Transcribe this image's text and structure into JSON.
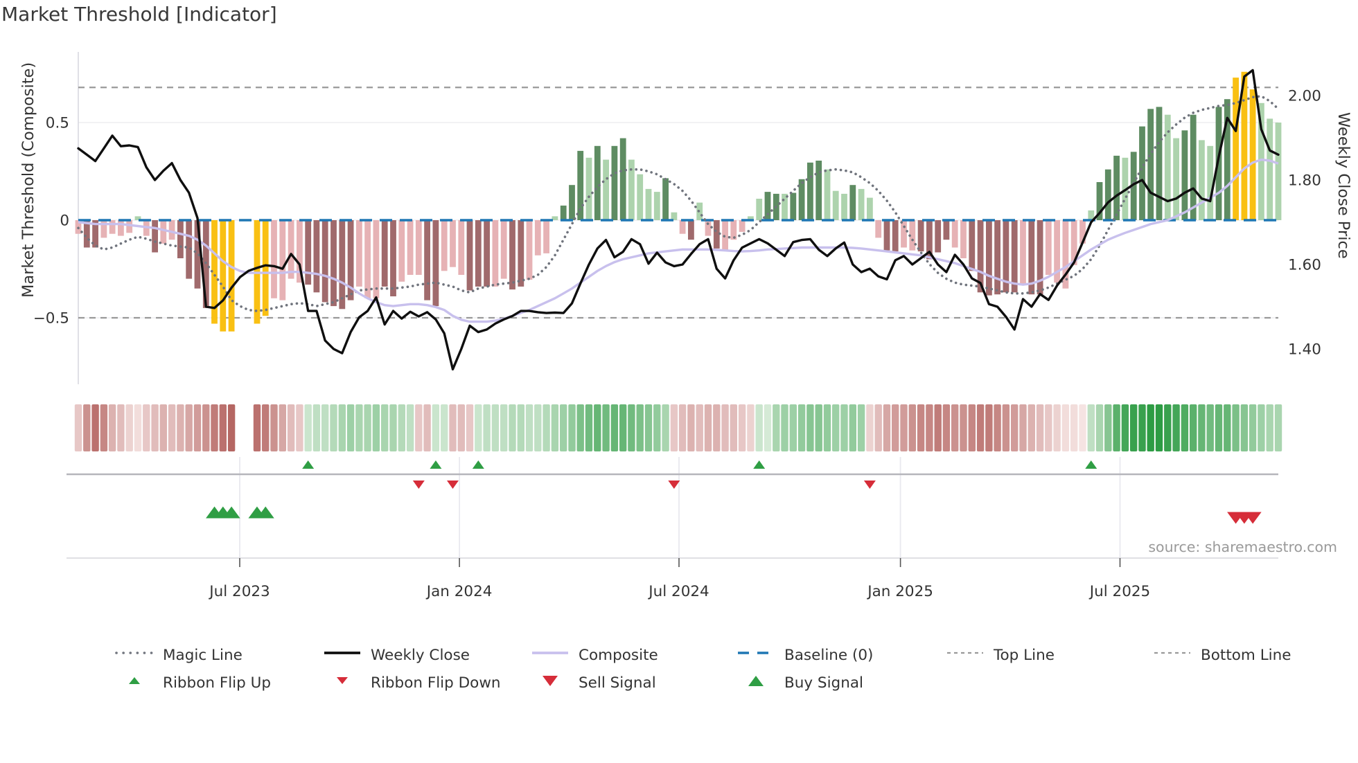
{
  "title": "Market Threshold [Indicator]",
  "source": "source: sharemaestro.com",
  "colors": {
    "bars": {
      "dr": "#a06a6c",
      "lr": "#e6b2b5",
      "dg": "#5e8c62",
      "lg": "#add3ad",
      "y": "#f9c013"
    },
    "close_line": "#0f0f0f",
    "composite_line": "#c8c0ed",
    "magic_line": "#70747d",
    "baseline": "#1f77b4",
    "top_bottom_line": "#999999",
    "signal_green": "#2f9e44",
    "signal_red": "#d62d39",
    "ribbon_neg_light": "#f5e3e2",
    "ribbon_neg_dark": "#b05c58",
    "ribbon_pos_light": "#e7f2e6",
    "ribbon_pos_dark": "#2e9c44",
    "grid": "#ededf1",
    "spine": "#d8d8e0",
    "panel_line": "#b5b5bb",
    "panel_line_faint": "#dcdce0",
    "tick_text": "#333333"
  },
  "axes": {
    "left": {
      "label": "Market Threshold (Composite)",
      "tick_values": [
        0.5,
        0,
        -0.5
      ],
      "tick_labels": [
        "0.5",
        "0",
        "−0.5"
      ],
      "range": [
        -0.84,
        0.86
      ]
    },
    "right": {
      "label": "Weekly Close Price",
      "tick_values": [
        2.0,
        1.8,
        1.6,
        1.4
      ],
      "tick_labels": [
        "2.00",
        "1.80",
        "1.60",
        "1.40"
      ],
      "range": [
        1.316,
        2.103
      ]
    },
    "x": {
      "tick_weeks": [
        18.97,
        44.78,
        70.58,
        96.6,
        122.4
      ],
      "tick_labels": [
        "Jul 2023",
        "Jan 2024",
        "Jul 2024",
        "Jan 2025",
        "Jul 2025"
      ]
    }
  },
  "legend": {
    "row1": [
      {
        "label": "Magic Line",
        "swatch": "dotted-gray"
      },
      {
        "label": "Weekly Close",
        "swatch": "solid-black"
      },
      {
        "label": "Composite",
        "swatch": "solid-lavender"
      },
      {
        "label": "Baseline (0)",
        "swatch": "dashed-blue"
      },
      {
        "label": "Top Line",
        "swatch": "dash-gray"
      },
      {
        "label": "Bottom Line",
        "swatch": "dash-gray"
      }
    ],
    "row2": [
      {
        "label": "Ribbon Flip Up",
        "marker": "up-green-small"
      },
      {
        "label": "Ribbon Flip Down",
        "marker": "down-red-small"
      },
      {
        "label": "Sell Signal",
        "marker": "down-red-large"
      },
      {
        "label": "Buy Signal",
        "marker": "up-green-large"
      }
    ]
  },
  "chart_data": {
    "type": "combo",
    "n_weeks": 142,
    "frequency": "weekly",
    "reference_lines": {
      "baseline": 0,
      "top_line": 0.68,
      "bottom_line": -0.5
    },
    "bars": {
      "axis": "left",
      "values": [
        -0.07,
        -0.14,
        -0.14,
        -0.09,
        -0.07,
        -0.08,
        -0.065,
        0.02,
        -0.08,
        -0.165,
        -0.12,
        -0.1,
        -0.195,
        -0.3,
        -0.35,
        -0.45,
        -0.53,
        -0.57,
        -0.57,
        null,
        null,
        -0.53,
        -0.49,
        -0.4,
        -0.41,
        -0.3,
        -0.32,
        -0.33,
        -0.37,
        -0.42,
        -0.44,
        -0.455,
        -0.41,
        -0.34,
        -0.4,
        -0.4,
        -0.34,
        -0.39,
        -0.315,
        -0.28,
        -0.28,
        -0.41,
        -0.44,
        -0.26,
        -0.24,
        -0.28,
        -0.36,
        -0.34,
        -0.34,
        -0.34,
        -0.3,
        -0.355,
        -0.34,
        -0.305,
        -0.18,
        -0.17,
        0.02,
        0.075,
        0.18,
        0.355,
        0.32,
        0.38,
        0.31,
        0.38,
        0.42,
        0.31,
        0.235,
        0.16,
        0.145,
        0.215,
        0.04,
        -0.07,
        -0.1,
        0.09,
        -0.08,
        -0.145,
        -0.155,
        -0.1,
        -0.06,
        0.02,
        0.11,
        0.145,
        0.135,
        0.135,
        0.14,
        0.21,
        0.295,
        0.305,
        0.26,
        0.15,
        0.135,
        0.18,
        0.16,
        0.115,
        -0.09,
        -0.155,
        -0.16,
        -0.14,
        -0.155,
        -0.16,
        -0.2,
        -0.165,
        -0.1,
        -0.14,
        -0.195,
        -0.26,
        -0.37,
        -0.385,
        -0.38,
        -0.37,
        -0.37,
        -0.33,
        -0.38,
        -0.38,
        -0.28,
        -0.32,
        -0.35,
        -0.23,
        -0.12,
        0.05,
        0.195,
        0.26,
        0.33,
        0.32,
        0.35,
        0.48,
        0.57,
        0.58,
        0.54,
        0.42,
        0.46,
        0.54,
        0.41,
        0.38,
        0.58,
        0.62,
        0.73,
        0.76,
        0.67,
        0.6,
        0.52,
        0.5
      ],
      "colors": [
        "lr",
        "dr",
        "dr",
        "lr",
        "lr",
        "lr",
        "lr",
        "lg",
        "lr",
        "dr",
        "lr",
        "lr",
        "dr",
        "dr",
        "dr",
        "dr",
        "y",
        "y",
        "y",
        null,
        null,
        "y",
        "y",
        "lr",
        "lr",
        "lr",
        "lr",
        "dr",
        "dr",
        "dr",
        "dr",
        "dr",
        "dr",
        "lr",
        "lr",
        "lr",
        "dr",
        "dr",
        "lr",
        "lr",
        "lr",
        "dr",
        "dr",
        "lr",
        "lr",
        "lr",
        "dr",
        "dr",
        "dr",
        "lr",
        "lr",
        "dr",
        "dr",
        "lr",
        "lr",
        "lr",
        "lg",
        "dg",
        "dg",
        "dg",
        "lg",
        "dg",
        "lg",
        "dg",
        "dg",
        "lg",
        "lg",
        "lg",
        "lg",
        "dg",
        "lg",
        "lr",
        "dr",
        "lg",
        "lr",
        "dr",
        "lr",
        "lr",
        "lr",
        "lg",
        "lg",
        "dg",
        "dg",
        "lg",
        "dg",
        "dg",
        "dg",
        "dg",
        "lg",
        "lg",
        "lg",
        "dg",
        "lg",
        "lg",
        "lr",
        "dr",
        "dr",
        "lr",
        "lr",
        "dr",
        "dr",
        "dr",
        "dr",
        "lr",
        "lr",
        "dr",
        "dr",
        "dr",
        "dr",
        "dr",
        "dr",
        "lr",
        "dr",
        "dr",
        "lr",
        "lr",
        "lr",
        "lr",
        "lr",
        "lg",
        "dg",
        "dg",
        "dg",
        "lg",
        "dg",
        "dg",
        "dg",
        "dg",
        "lg",
        "lg",
        "dg",
        "dg",
        "lg",
        "lg",
        "dg",
        "dg",
        "y",
        "y",
        "y",
        "lg",
        "lg",
        "lg"
      ]
    },
    "series": {
      "weekly_close": {
        "axis": "right",
        "values": [
          1.875,
          1.86,
          1.845,
          1.875,
          1.905,
          1.88,
          1.882,
          1.878,
          1.83,
          1.8,
          1.822,
          1.84,
          1.8,
          1.77,
          1.71,
          1.5,
          1.497,
          1.515,
          1.545,
          1.57,
          1.585,
          1.592,
          1.598,
          1.596,
          1.59,
          1.625,
          1.6,
          1.49,
          1.49,
          1.42,
          1.4,
          1.39,
          1.44,
          1.475,
          1.49,
          1.522,
          1.458,
          1.49,
          1.472,
          1.488,
          1.477,
          1.487,
          1.47,
          1.437,
          1.352,
          1.4,
          1.455,
          1.44,
          1.446,
          1.46,
          1.47,
          1.478,
          1.49,
          1.49,
          1.487,
          1.485,
          1.486,
          1.485,
          1.508,
          1.555,
          1.6,
          1.638,
          1.658,
          1.617,
          1.63,
          1.66,
          1.648,
          1.602,
          1.628,
          1.605,
          1.596,
          1.6,
          1.625,
          1.648,
          1.66,
          1.59,
          1.567,
          1.61,
          1.64,
          1.65,
          1.66,
          1.65,
          1.635,
          1.62,
          1.653,
          1.658,
          1.66,
          1.635,
          1.62,
          1.638,
          1.652,
          1.6,
          1.582,
          1.59,
          1.572,
          1.565,
          1.61,
          1.62,
          1.6,
          1.615,
          1.63,
          1.6,
          1.582,
          1.623,
          1.6,
          1.567,
          1.556,
          1.506,
          1.5,
          1.476,
          1.446,
          1.518,
          1.5,
          1.53,
          1.516,
          1.55,
          1.576,
          1.605,
          1.652,
          1.7,
          1.722,
          1.747,
          1.763,
          1.776,
          1.79,
          1.8,
          1.77,
          1.76,
          1.75,
          1.756,
          1.77,
          1.78,
          1.756,
          1.75,
          1.855,
          1.947,
          1.916,
          2.045,
          2.06,
          1.92,
          1.87,
          1.86
        ]
      },
      "composite": {
        "axis": "left",
        "values": [
          -0.01,
          -0.015,
          -0.02,
          -0.02,
          -0.02,
          -0.02,
          -0.025,
          -0.03,
          -0.035,
          -0.04,
          -0.05,
          -0.06,
          -0.07,
          -0.08,
          -0.1,
          -0.13,
          -0.17,
          -0.21,
          -0.24,
          -0.26,
          -0.27,
          -0.27,
          -0.27,
          -0.27,
          -0.27,
          -0.265,
          -0.265,
          -0.27,
          -0.275,
          -0.285,
          -0.3,
          -0.32,
          -0.345,
          -0.375,
          -0.4,
          -0.42,
          -0.435,
          -0.44,
          -0.435,
          -0.43,
          -0.43,
          -0.435,
          -0.445,
          -0.46,
          -0.49,
          -0.51,
          -0.52,
          -0.52,
          -0.52,
          -0.515,
          -0.505,
          -0.49,
          -0.475,
          -0.46,
          -0.44,
          -0.42,
          -0.4,
          -0.375,
          -0.35,
          -0.32,
          -0.29,
          -0.26,
          -0.235,
          -0.215,
          -0.2,
          -0.19,
          -0.18,
          -0.17,
          -0.165,
          -0.16,
          -0.155,
          -0.15,
          -0.15,
          -0.15,
          -0.15,
          -0.152,
          -0.155,
          -0.158,
          -0.16,
          -0.158,
          -0.155,
          -0.15,
          -0.148,
          -0.145,
          -0.143,
          -0.14,
          -0.14,
          -0.14,
          -0.14,
          -0.14,
          -0.14,
          -0.142,
          -0.145,
          -0.15,
          -0.155,
          -0.16,
          -0.165,
          -0.17,
          -0.175,
          -0.18,
          -0.19,
          -0.2,
          -0.21,
          -0.22,
          -0.235,
          -0.25,
          -0.265,
          -0.285,
          -0.3,
          -0.315,
          -0.325,
          -0.33,
          -0.325,
          -0.31,
          -0.29,
          -0.265,
          -0.24,
          -0.21,
          -0.18,
          -0.15,
          -0.125,
          -0.1,
          -0.082,
          -0.065,
          -0.05,
          -0.035,
          -0.02,
          -0.01,
          0.0,
          0.02,
          0.04,
          0.065,
          0.09,
          0.115,
          0.14,
          0.175,
          0.22,
          0.265,
          0.295,
          0.31,
          0.305,
          0.29
        ]
      },
      "magic": {
        "axis": "left",
        "values": [
          -0.04,
          -0.09,
          -0.13,
          -0.15,
          -0.14,
          -0.12,
          -0.1,
          -0.085,
          -0.095,
          -0.11,
          -0.12,
          -0.13,
          -0.135,
          -0.14,
          -0.17,
          -0.22,
          -0.28,
          -0.34,
          -0.41,
          -0.44,
          -0.46,
          -0.465,
          -0.46,
          -0.45,
          -0.44,
          -0.43,
          -0.425,
          -0.43,
          -0.44,
          -0.43,
          -0.42,
          -0.4,
          -0.38,
          -0.36,
          -0.355,
          -0.35,
          -0.35,
          -0.35,
          -0.345,
          -0.34,
          -0.33,
          -0.325,
          -0.32,
          -0.33,
          -0.34,
          -0.36,
          -0.37,
          -0.35,
          -0.34,
          -0.33,
          -0.325,
          -0.32,
          -0.31,
          -0.3,
          -0.28,
          -0.24,
          -0.18,
          -0.1,
          -0.02,
          0.06,
          0.12,
          0.17,
          0.21,
          0.24,
          0.255,
          0.26,
          0.26,
          0.25,
          0.235,
          0.21,
          0.185,
          0.15,
          0.1,
          0.04,
          -0.02,
          -0.06,
          -0.085,
          -0.09,
          -0.075,
          -0.05,
          -0.01,
          0.03,
          0.07,
          0.11,
          0.15,
          0.19,
          0.22,
          0.245,
          0.255,
          0.26,
          0.255,
          0.245,
          0.22,
          0.19,
          0.15,
          0.1,
          0.04,
          -0.03,
          -0.1,
          -0.165,
          -0.225,
          -0.27,
          -0.3,
          -0.32,
          -0.33,
          -0.335,
          -0.34,
          -0.35,
          -0.36,
          -0.37,
          -0.375,
          -0.375,
          -0.37,
          -0.36,
          -0.345,
          -0.325,
          -0.305,
          -0.285,
          -0.25,
          -0.2,
          -0.13,
          -0.05,
          0.03,
          0.11,
          0.19,
          0.27,
          0.34,
          0.4,
          0.45,
          0.49,
          0.525,
          0.55,
          0.565,
          0.575,
          0.585,
          0.59,
          0.6,
          0.615,
          0.63,
          0.635,
          0.61,
          0.57
        ]
      }
    },
    "ribbon": {
      "values": [
        -0.25,
        -0.5,
        -0.65,
        -0.55,
        -0.35,
        -0.3,
        -0.2,
        -0.15,
        -0.25,
        -0.3,
        -0.35,
        -0.3,
        -0.35,
        -0.4,
        -0.45,
        -0.5,
        -0.6,
        -0.65,
        -0.7,
        null,
        null,
        -0.65,
        -0.6,
        -0.5,
        -0.4,
        -0.3,
        -0.25,
        0.25,
        0.3,
        0.3,
        0.35,
        0.4,
        0.45,
        0.4,
        0.4,
        0.45,
        0.4,
        0.4,
        0.35,
        0.3,
        -0.25,
        -0.3,
        0.25,
        0.25,
        -0.3,
        -0.3,
        -0.25,
        0.25,
        0.3,
        0.3,
        0.3,
        0.35,
        0.35,
        0.3,
        0.3,
        0.35,
        0.4,
        0.45,
        0.5,
        0.6,
        0.65,
        0.7,
        0.65,
        0.7,
        0.7,
        0.65,
        0.6,
        0.55,
        0.5,
        0.4,
        -0.25,
        -0.3,
        -0.35,
        -0.3,
        -0.35,
        -0.35,
        -0.3,
        -0.3,
        -0.25,
        -0.2,
        0.25,
        0.2,
        0.4,
        0.45,
        0.45,
        0.5,
        0.55,
        0.55,
        0.5,
        0.45,
        0.45,
        0.5,
        0.45,
        -0.2,
        -0.3,
        -0.4,
        -0.45,
        -0.45,
        -0.5,
        -0.55,
        -0.55,
        -0.6,
        -0.55,
        -0.5,
        -0.5,
        -0.55,
        -0.6,
        -0.6,
        -0.55,
        -0.5,
        -0.45,
        -0.4,
        -0.35,
        -0.3,
        -0.25,
        -0.2,
        -0.15,
        -0.15,
        -0.1,
        0.3,
        0.4,
        0.55,
        0.75,
        0.85,
        0.9,
        0.9,
        0.95,
        0.95,
        0.9,
        0.85,
        0.8,
        0.75,
        0.7,
        0.65,
        0.7,
        0.7,
        0.6,
        0.55,
        0.5,
        0.45,
        0.4,
        0.4
      ]
    },
    "signals": {
      "ribbon_flip_up_weeks": [
        27,
        42,
        47,
        80,
        119
      ],
      "ribbon_flip_down_weeks": [
        40,
        44,
        70,
        93
      ],
      "buy_signal_weeks": [
        16,
        17,
        18,
        21,
        22
      ],
      "sell_signal_weeks": [
        136,
        137,
        138
      ]
    }
  }
}
